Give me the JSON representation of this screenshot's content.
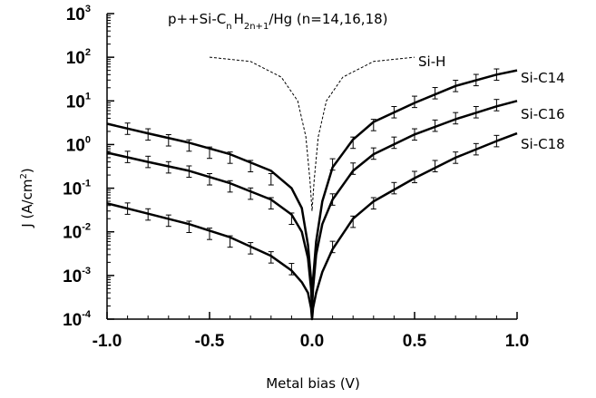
{
  "chart_data": {
    "type": "line",
    "title": "p++Si-C n H 2n+1 /Hg (n=14,16,18)",
    "xlabel": "Metal bias (V)",
    "ylabel": "J (A/cm2)",
    "xlim": [
      -1.0,
      1.0
    ],
    "ylim_log10": [
      -4,
      3
    ],
    "yscale": "log",
    "x_ticks": [
      "-1.0",
      "-0.5",
      "0.0",
      "0.5",
      "1.0"
    ],
    "y_ticks": [
      "10^-4",
      "10^-3",
      "10^-2",
      "10^-1",
      "10^0",
      "10^1",
      "10^2",
      "10^3"
    ],
    "series": [
      {
        "name": "Si-H",
        "style": "dashed",
        "x": [
          -0.5,
          -0.3,
          -0.15,
          -0.07,
          -0.03,
          -0.01,
          0.0,
          0.01,
          0.03,
          0.07,
          0.15,
          0.3,
          0.5
        ],
        "y": [
          100,
          80,
          35,
          10,
          1.5,
          0.15,
          0.03,
          0.15,
          1.5,
          10,
          35,
          80,
          100
        ]
      },
      {
        "name": "Si-C14",
        "style": "solid",
        "x": [
          -1.0,
          -0.8,
          -0.6,
          -0.4,
          -0.2,
          -0.1,
          -0.05,
          -0.02,
          -0.005,
          0.0,
          0.005,
          0.02,
          0.05,
          0.1,
          0.2,
          0.3,
          0.5,
          0.7,
          0.9,
          1.0
        ],
        "y": [
          3.0,
          1.8,
          1.1,
          0.6,
          0.25,
          0.1,
          0.035,
          0.005,
          0.0008,
          0.0002,
          0.0008,
          0.006,
          0.05,
          0.3,
          1.3,
          3.3,
          9,
          22,
          40,
          50
        ],
        "points_x": [
          -0.9,
          -0.8,
          -0.7,
          -0.6,
          -0.5,
          -0.4,
          -0.3,
          -0.2,
          0.1,
          0.2,
          0.3,
          0.4,
          0.5,
          0.6,
          0.7,
          0.8,
          0.9
        ],
        "points_y": [
          2.3,
          1.7,
          1.25,
          0.95,
          0.65,
          0.5,
          0.32,
          0.16,
          0.35,
          1.1,
          2.8,
          5.5,
          9.5,
          15,
          22,
          30,
          40
        ]
      },
      {
        "name": "Si-C16",
        "style": "solid",
        "x": [
          -1.0,
          -0.8,
          -0.6,
          -0.4,
          -0.2,
          -0.1,
          -0.05,
          -0.02,
          -0.005,
          0.0,
          0.005,
          0.02,
          0.05,
          0.1,
          0.2,
          0.3,
          0.5,
          0.7,
          0.9,
          1.0
        ],
        "y": [
          0.65,
          0.4,
          0.25,
          0.13,
          0.055,
          0.025,
          0.01,
          0.0025,
          0.0005,
          0.0002,
          0.0005,
          0.003,
          0.015,
          0.055,
          0.25,
          0.6,
          1.7,
          3.8,
          7.5,
          10
        ],
        "points_x": [
          -0.9,
          -0.8,
          -0.7,
          -0.6,
          -0.5,
          -0.4,
          -0.3,
          -0.2,
          -0.1,
          0.1,
          0.2,
          0.3,
          0.4,
          0.5,
          0.6,
          0.7,
          0.8,
          0.9
        ],
        "points_y": [
          0.52,
          0.4,
          0.3,
          0.24,
          0.16,
          0.11,
          0.075,
          0.045,
          0.02,
          0.055,
          0.28,
          0.62,
          1.1,
          1.7,
          2.7,
          4.0,
          5.5,
          8.0
        ]
      },
      {
        "name": "Si-C18",
        "style": "solid",
        "x": [
          -1.0,
          -0.8,
          -0.6,
          -0.4,
          -0.2,
          -0.1,
          -0.05,
          -0.02,
          -0.005,
          0.0,
          0.005,
          0.02,
          0.05,
          0.1,
          0.2,
          0.3,
          0.5,
          0.7,
          0.9,
          1.0
        ],
        "y": [
          0.045,
          0.026,
          0.015,
          0.0075,
          0.0028,
          0.0013,
          0.0007,
          0.0004,
          0.00018,
          0.0001,
          0.00018,
          0.0004,
          0.0012,
          0.004,
          0.02,
          0.05,
          0.17,
          0.5,
          1.2,
          1.8
        ],
        "points_x": [
          -0.9,
          -0.8,
          -0.7,
          -0.6,
          -0.5,
          -0.4,
          -0.3,
          -0.2,
          -0.1,
          0.1,
          0.2,
          0.3,
          0.4,
          0.5,
          0.6,
          0.7,
          0.8,
          0.9
        ],
        "points_y": [
          0.034,
          0.025,
          0.018,
          0.013,
          0.009,
          0.006,
          0.0042,
          0.0026,
          0.0014,
          0.0045,
          0.017,
          0.045,
          0.1,
          0.18,
          0.32,
          0.5,
          0.78,
          1.2
        ]
      }
    ],
    "labels": {
      "si_h": "Si-H",
      "c14": "Si-C14",
      "c16": "Si-C16",
      "c18": "Si-C18"
    },
    "title_parts": {
      "main1": "p++Si-C",
      "sub_n": "n",
      "h": "H",
      "sub_2n": "2n+1",
      "tail": "/Hg (n=14,16,18)"
    },
    "ylabel_parts": {
      "main": "J (A/cm",
      "sup": "2",
      "close": ")"
    },
    "grid": false,
    "legend": "none"
  }
}
